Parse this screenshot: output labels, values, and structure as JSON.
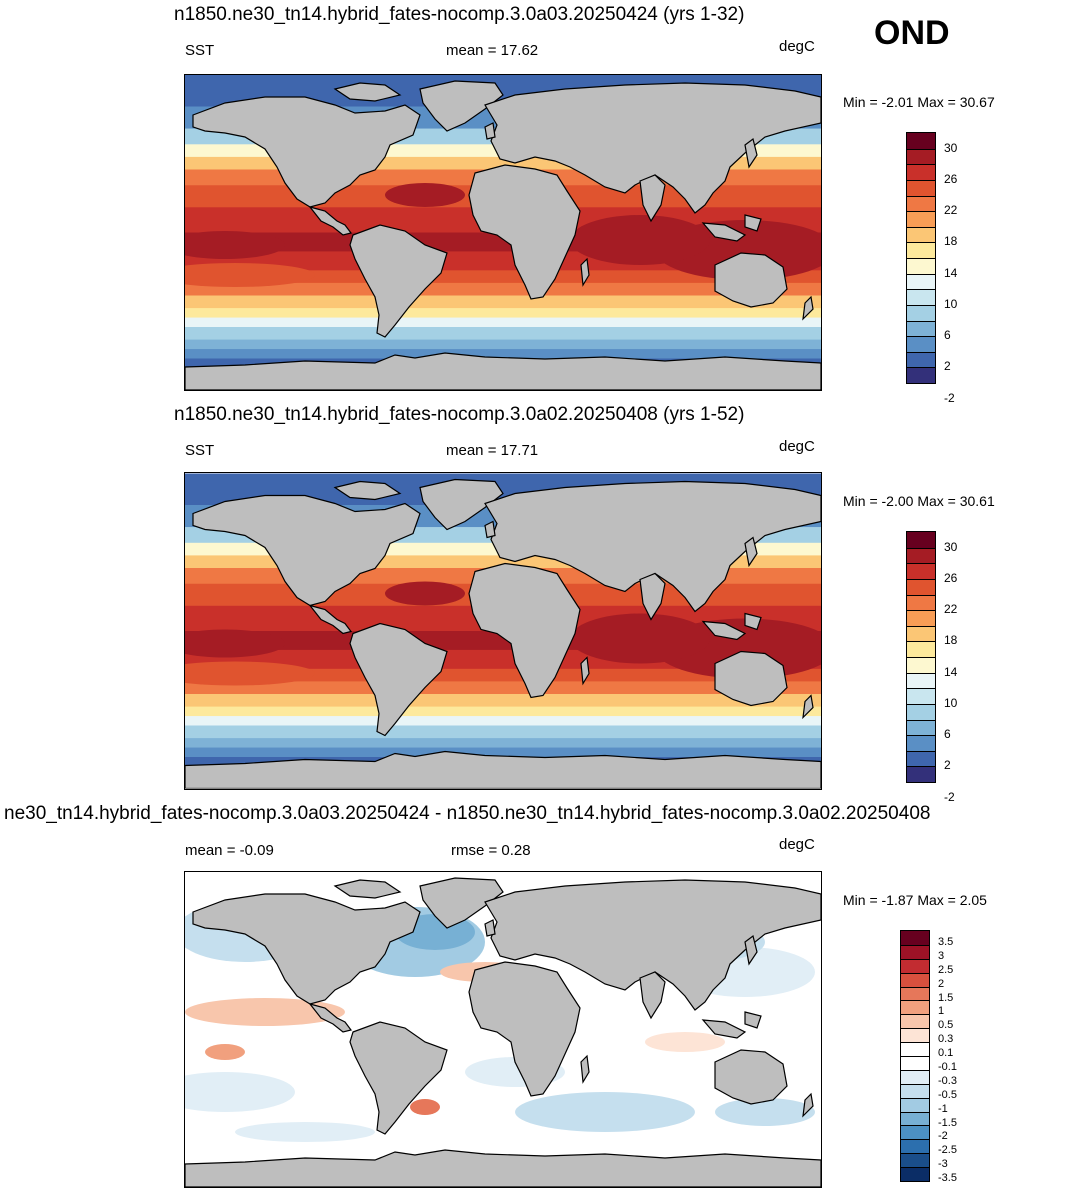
{
  "season": "OND",
  "panels": [
    {
      "title": "n1850.ne30_tn14.hybrid_fates-nocomp.3.0a03.20250424 (yrs 1-32)",
      "left_label": "SST",
      "center_label": "mean =  17.62",
      "units": "degC",
      "minmax": "Min =  -2.01 Max =  30.67",
      "kind": "abs"
    },
    {
      "title": "n1850.ne30_tn14.hybrid_fates-nocomp.3.0a02.20250408 (yrs 1-52)",
      "left_label": "SST",
      "center_label": "mean =  17.71",
      "units": "degC",
      "minmax": "Min =  -2.00 Max =  30.61",
      "kind": "abs"
    },
    {
      "title": "ne30_tn14.hybrid_fates-nocomp.3.0a03.20250424 - n1850.ne30_tn14.hybrid_fates-nocomp.3.0a02.20250408",
      "left_label": "mean =  -0.09",
      "center_label": "rmse =   0.28",
      "units": "degC",
      "minmax": "Min =  -1.87 Max =   2.05",
      "kind": "diff"
    }
  ],
  "colorbar_abs": {
    "colors": [
      "#67001f",
      "#a51c24",
      "#c9302a",
      "#e0542f",
      "#ef7844",
      "#f89d56",
      "#fbc675",
      "#fde99c",
      "#fdf8d0",
      "#e9f5f7",
      "#c9e6ef",
      "#a4d0e4",
      "#7eb2d6",
      "#5a8fc5",
      "#3f66ad",
      "#33307a"
    ],
    "ticks": [
      "30",
      "26",
      "22",
      "18",
      "14",
      "10",
      "6",
      "2",
      "-2"
    ]
  },
  "colorbar_diff": {
    "colors": [
      "#67001f",
      "#9d1226",
      "#c22c31",
      "#d8503e",
      "#e6775a",
      "#f1a07e",
      "#f8c6ac",
      "#fde4d6",
      "#ffffff",
      "#ffffff",
      "#e1eef6",
      "#c5dfee",
      "#a2cbe3",
      "#77b0d4",
      "#4c91c3",
      "#2c6fae",
      "#1a4e8a",
      "#0b2d66"
    ],
    "ticks": [
      "3.5",
      "3",
      "2.5",
      "2",
      "1.5",
      "1",
      "0.5",
      "0.3",
      "0.1",
      "-0.1",
      "-0.3",
      "-0.5",
      "-1",
      "-1.5",
      "-2",
      "-2.5",
      "-3",
      "-3.5"
    ]
  }
}
